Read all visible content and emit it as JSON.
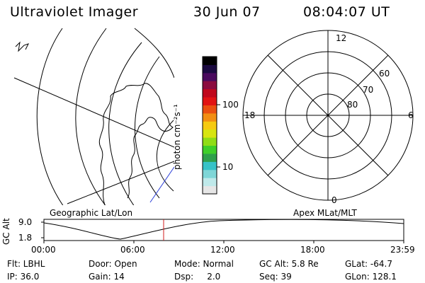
{
  "header": {
    "title": "Ultraviolet Imager",
    "date": "30 Jun 07",
    "time": "08:04:07 UT"
  },
  "colorbar": {
    "unit_label": "photon cm⁻²s⁻¹",
    "tick_100": "100",
    "tick_10": "10",
    "colors": [
      "#e6e6e6",
      "#bfe9ea",
      "#7fd6d7",
      "#37c2c7",
      "#2ea04b",
      "#3ecf2a",
      "#8fdd16",
      "#d7e510",
      "#f6ca10",
      "#f28e12",
      "#ea4f10",
      "#e11313",
      "#c0081c",
      "#8b0b3f",
      "#4a0a5e",
      "#1b0a40",
      "#000000"
    ]
  },
  "left_panel": {
    "label": "Geographic Lat/Lon"
  },
  "right_panel": {
    "label": "Apex MLat/MLT",
    "mlt_labels": {
      "top": "12",
      "left": "18",
      "right": "6",
      "bottom": "0"
    },
    "lat_labels": [
      "60",
      "70",
      "80"
    ]
  },
  "timeline": {
    "ylabel": "GC Alt",
    "yticks": [
      "9.0",
      "1.8"
    ],
    "xticks": [
      "00:00",
      "06:00",
      "12:00",
      "18:00",
      "23:59"
    ],
    "marker_time": "08:04"
  },
  "footer": {
    "flt": "Flt: LBHL",
    "door": "Door: Open",
    "mode": "Mode: Normal",
    "gc_alt": "GC Alt: 5.8 Re",
    "glat": "GLat: -64.7",
    "ip": "IP: 36.0",
    "gain": "Gain: 14",
    "dsp": "Dsp:     2.0",
    "seq": "Seq: 39",
    "glon": "GLon: 128.1"
  }
}
